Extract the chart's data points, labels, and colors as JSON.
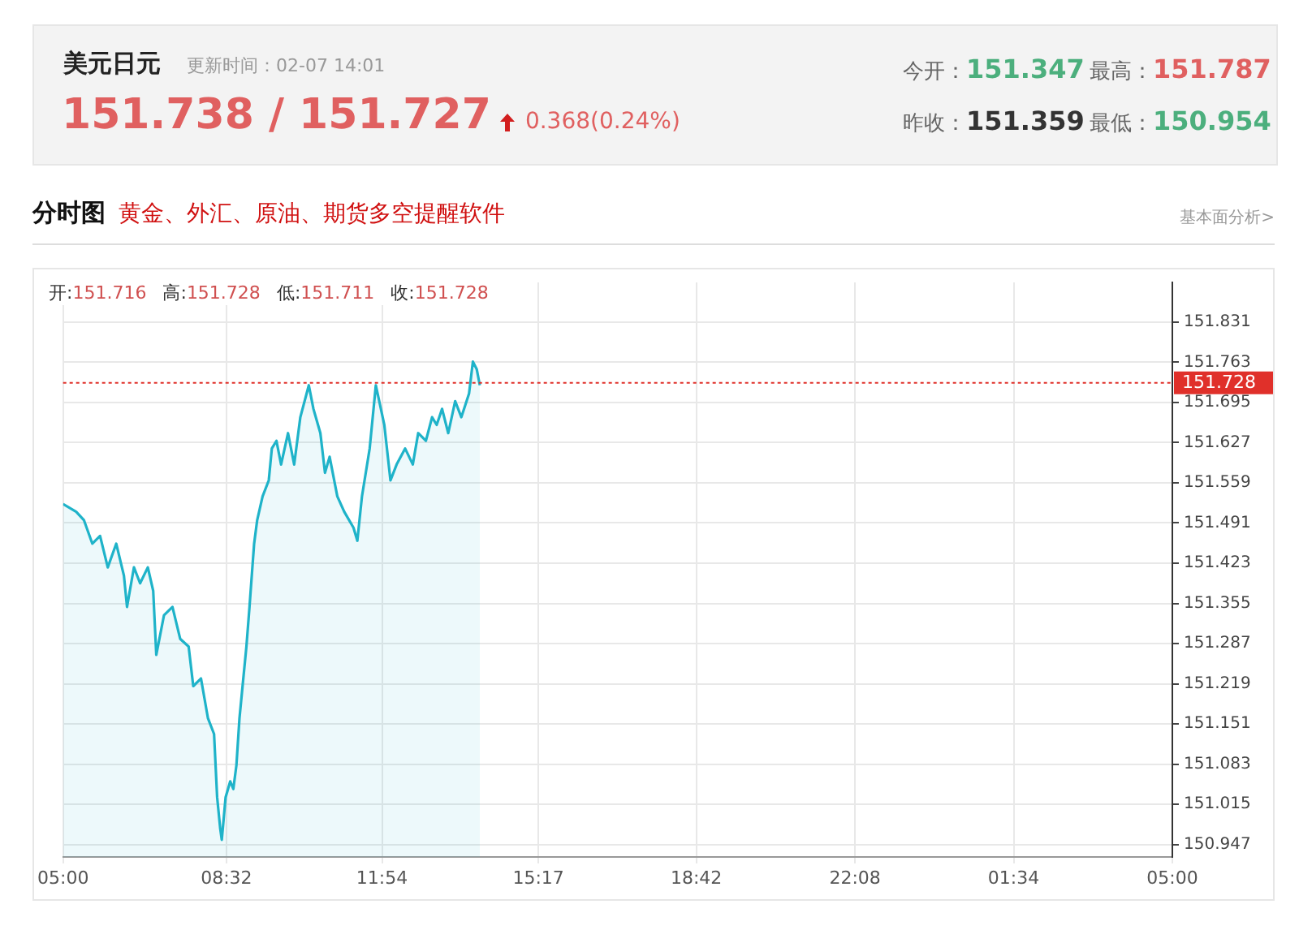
{
  "chart_data": {
    "type": "area",
    "title": "美元日元",
    "subtitle": "更新时间：02-07 14:01",
    "annotations": [
      "151.738 / 151.727",
      "0.368(0.24%)",
      "今开：151.347",
      "最高：151.787",
      "昨收：151.359",
      "最低：150.954",
      "分时图",
      "黄金、外汇、原油、期货多空提醒软件",
      "基本面分析>",
      "开:151.716",
      "高:151.728",
      "低:151.711",
      "收:151.728"
    ],
    "x": [
      "--02-07T05:00",
      "--02-07T05:17",
      "--02-07T05:27",
      "--02-07T05:38",
      "--02-07T05:48",
      "--02-07T05:58",
      "--02-07T06:09",
      "--02-07T06:19",
      "--02-07T06:23",
      "--02-07T06:32",
      "--02-07T06:40",
      "--02-07T06:50",
      "--02-07T06:57",
      "--02-07T07:01",
      "--02-07T07:11",
      "--02-07T07:22",
      "--02-07T07:32",
      "--02-07T07:43",
      "--02-07T07:49",
      "--02-07T07:59",
      "--02-07T08:08",
      "--02-07T08:16",
      "--02-07T08:20",
      "--02-07T08:24",
      "--02-07T08:26",
      "--02-07T08:31",
      "--02-07T08:37",
      "--02-07T08:41",
      "--02-07T08:45",
      "--02-07T08:49",
      "--02-07T08:53",
      "--02-07T08:58",
      "--02-07T09:02",
      "--02-07T09:08",
      "--02-07T09:12",
      "--02-07T09:19",
      "--02-07T09:27",
      "--02-07T09:31",
      "--02-07T09:37",
      "--02-07T09:43",
      "--02-07T09:52",
      "--02-07T10:00",
      "--02-07T10:08",
      "--02-07T10:19",
      "--02-07T10:25",
      "--02-07T10:34",
      "--02-07T10:40",
      "--02-07T10:46",
      "--02-07T10:56",
      "--02-07T11:05",
      "--02-07T11:17",
      "--02-07T11:22",
      "--02-07T11:28",
      "--02-07T11:38",
      "--02-07T11:46",
      "--02-07T11:57",
      "--02-07T12:05",
      "--02-07T12:13",
      "--02-07T12:24",
      "--02-07T12:34",
      "--02-07T12:41",
      "--02-07T12:51",
      "--02-07T12:59",
      "--02-07T13:05",
      "--02-07T13:12",
      "--02-07T13:20",
      "--02-07T13:29",
      "--02-07T13:37",
      "--02-07T13:47",
      "--02-07T13:52",
      "--02-07T13:57",
      "--02-07T14:01"
    ],
    "series": [
      {
        "color": "#1fb3c9",
        "values": [
          151.523,
          151.51,
          151.496,
          151.456,
          151.469,
          151.416,
          151.456,
          151.402,
          151.349,
          151.416,
          151.389,
          151.416,
          151.376,
          151.268,
          151.335,
          151.349,
          151.295,
          151.282,
          151.215,
          151.228,
          151.161,
          151.134,
          151.027,
          150.974,
          150.955,
          151.027,
          151.054,
          151.041,
          151.081,
          151.161,
          151.215,
          151.282,
          151.349,
          151.456,
          151.496,
          151.536,
          151.563,
          151.617,
          151.63,
          151.59,
          151.643,
          151.59,
          151.67,
          151.724,
          151.684,
          151.643,
          151.576,
          151.603,
          151.536,
          151.51,
          151.483,
          151.461,
          151.536,
          151.617,
          151.724,
          151.657,
          151.563,
          151.59,
          151.617,
          151.59,
          151.643,
          151.63,
          151.67,
          151.657,
          151.684,
          151.643,
          151.697,
          151.67,
          151.71,
          151.764,
          151.751,
          151.724
        ]
      }
    ],
    "xlim": [
      "--02-07T05:00",
      "--02-08T05:00"
    ],
    "xticks": [
      {
        "value": "--02-07T05:00",
        "label": "05:00"
      },
      {
        "value": "--02-07T08:32",
        "label": "08:32"
      },
      {
        "value": "--02-07T11:54",
        "label": "11:54"
      },
      {
        "value": "--02-07T15:17",
        "label": "15:17"
      },
      {
        "value": "--02-07T18:42",
        "label": "18:42"
      },
      {
        "value": "--02-07T22:08",
        "label": "22:08"
      },
      {
        "value": "--02-08T01:34",
        "label": "01:34"
      },
      {
        "value": "--02-08T05:00",
        "label": "05:00"
      }
    ],
    "ylim": [
      150.926,
      151.898
    ],
    "yticks": [
      150.947,
      151.015,
      151.083,
      151.151,
      151.219,
      151.287,
      151.355,
      151.423,
      151.491,
      151.559,
      151.627,
      151.695,
      151.763,
      151.831
    ],
    "ref_lines": [
      {
        "axis": "y",
        "value": 151.728,
        "label": "151.728",
        "color": "#e0302a",
        "line_style": "dotted"
      }
    ],
    "grid": true,
    "legend": false,
    "marker": "none",
    "line_style": "solid"
  }
}
